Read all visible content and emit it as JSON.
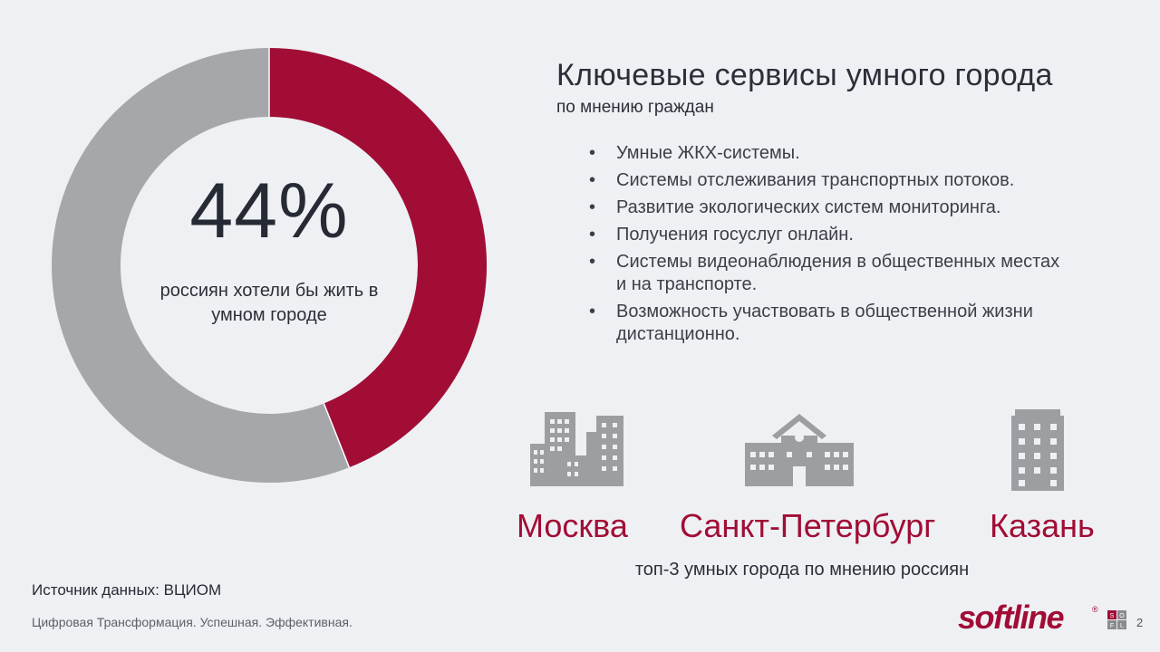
{
  "slide": {
    "percent": "44%",
    "percent_value": 44,
    "percent_caption": "россиян хотели бы жить в умном городе",
    "title": "Ключевые сервисы умного города",
    "subtitle": "по мнению граждан",
    "services": [
      "Умные ЖКХ-системы.",
      "Системы отслеживания транспортных потоков.",
      "Развитие экологических систем мониторинга.",
      "Получения госуслуг онлайн.",
      "Системы видеонаблюдения в общественных местах и на транспорте.",
      "Возможность участвовать в общественной жизни дистанционно."
    ],
    "cities": [
      {
        "name": "Москва",
        "icon": "city-buildings-icon"
      },
      {
        "name": "Санкт-Петербург",
        "icon": "public-building-icon"
      },
      {
        "name": "Казань",
        "icon": "office-tower-icon"
      }
    ],
    "cities_caption": "топ-3 умных города по мнению россиян",
    "source": "Источник данных: ВЦИОМ",
    "tagline": "Цифровая Трансформация. Успешная. Эффективная.",
    "logo_text": "softline",
    "logo_reg": "®",
    "logo_grid_letters": [
      "S",
      "O",
      "F",
      "L"
    ],
    "page_number": "2"
  },
  "colors": {
    "accent": "#a10d35",
    "ring_rest": "#a6a7aa",
    "icon_gray": "#9d9ea1",
    "background": "#eff0f4"
  }
}
